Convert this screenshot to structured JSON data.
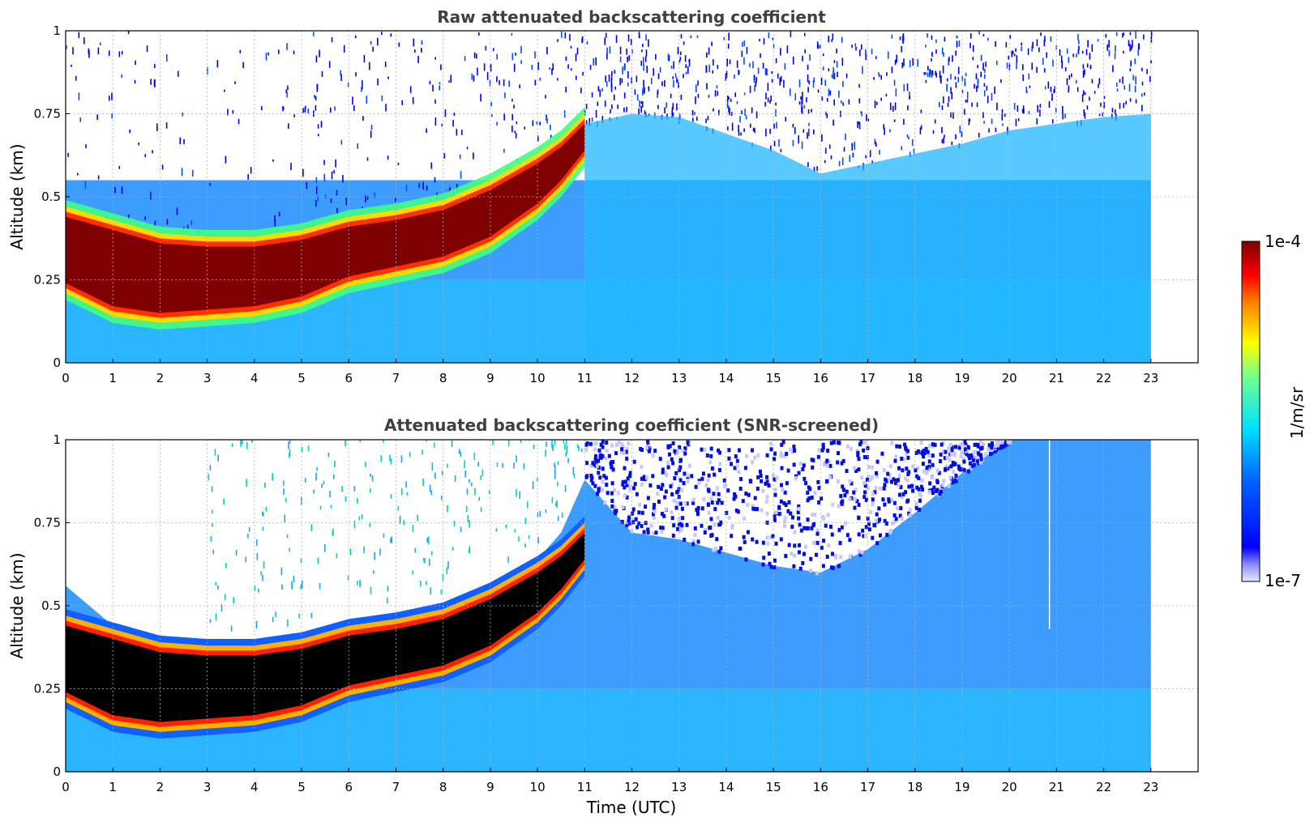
{
  "chart_data": [
    {
      "type": "heatmap",
      "title": "Raw attenuated backscattering coefficient",
      "xlabel": "",
      "ylabel": "Altitude (km)",
      "xlim": [
        0,
        24
      ],
      "ylim": [
        0,
        1
      ],
      "x_ticks": [
        "0",
        "1",
        "2",
        "3",
        "4",
        "5",
        "6",
        "7",
        "8",
        "9",
        "10",
        "11",
        "12",
        "13",
        "14",
        "15",
        "16",
        "17",
        "18",
        "19",
        "20",
        "21",
        "22",
        "23"
      ],
      "y_ticks": [
        "0",
        "0.25",
        "0.5",
        "0.75",
        "1"
      ],
      "data_end_hour": 23,
      "grid": true,
      "layer_top_km": [
        [
          0,
          0.44
        ],
        [
          1,
          0.4
        ],
        [
          2,
          0.36
        ],
        [
          3,
          0.35
        ],
        [
          4,
          0.35
        ],
        [
          5,
          0.37
        ],
        [
          6,
          0.41
        ],
        [
          7,
          0.43
        ],
        [
          8,
          0.46
        ],
        [
          9,
          0.52
        ],
        [
          10,
          0.6
        ],
        [
          10.5,
          0.65
        ],
        [
          11,
          0.72
        ]
      ],
      "layer_bottom_km": [
        [
          0,
          0.24
        ],
        [
          1,
          0.17
        ],
        [
          2,
          0.15
        ],
        [
          3,
          0.16
        ],
        [
          4,
          0.17
        ],
        [
          5,
          0.2
        ],
        [
          6,
          0.26
        ],
        [
          7,
          0.29
        ],
        [
          8,
          0.32
        ],
        [
          9,
          0.38
        ],
        [
          10,
          0.48
        ],
        [
          10.5,
          0.55
        ],
        [
          11,
          0.64
        ]
      ],
      "mixed_layer_top_km": [
        [
          11,
          0.72
        ],
        [
          12,
          0.75
        ],
        [
          13,
          0.74
        ],
        [
          14,
          0.69
        ],
        [
          15,
          0.64
        ],
        [
          16,
          0.57
        ],
        [
          17,
          0.6
        ],
        [
          18,
          0.63
        ],
        [
          19,
          0.66
        ],
        [
          20,
          0.7
        ],
        [
          21,
          0.72
        ],
        [
          22,
          0.74
        ],
        [
          23,
          0.75
        ]
      ]
    },
    {
      "type": "heatmap",
      "title": "Attenuated backscattering coefficient (SNR-screened)",
      "xlabel": "Time (UTC)",
      "ylabel": "Altitude (km)",
      "xlim": [
        0,
        24
      ],
      "ylim": [
        0,
        1
      ],
      "x_ticks": [
        "0",
        "1",
        "2",
        "3",
        "4",
        "5",
        "6",
        "7",
        "8",
        "9",
        "10",
        "11",
        "12",
        "13",
        "14",
        "15",
        "16",
        "17",
        "18",
        "19",
        "20",
        "21",
        "22",
        "23"
      ],
      "y_ticks": [
        "0",
        "0.25",
        "0.5",
        "0.75",
        "1"
      ],
      "data_end_hour": 23,
      "grid": true,
      "screened_top_km": [
        [
          0,
          0.56
        ],
        [
          1,
          0.44
        ],
        [
          2,
          0.39
        ],
        [
          3,
          0.38
        ],
        [
          4,
          0.38
        ],
        [
          5,
          0.41
        ],
        [
          6,
          0.45
        ],
        [
          7,
          0.48
        ],
        [
          8,
          0.5
        ],
        [
          9,
          0.55
        ],
        [
          10,
          0.64
        ],
        [
          10.5,
          0.72
        ],
        [
          11,
          0.88
        ],
        [
          12,
          0.72
        ],
        [
          13,
          0.7
        ],
        [
          14,
          0.66
        ],
        [
          15,
          0.62
        ],
        [
          16,
          0.6
        ],
        [
          17,
          0.67
        ],
        [
          18,
          0.78
        ],
        [
          19,
          0.9
        ],
        [
          20,
          1.0
        ]
      ]
    }
  ],
  "colorbar": {
    "max_label": "1e-4",
    "min_label": "1e-7",
    "unit": "1/m/sr",
    "scale": "log",
    "colormap": "jet"
  }
}
